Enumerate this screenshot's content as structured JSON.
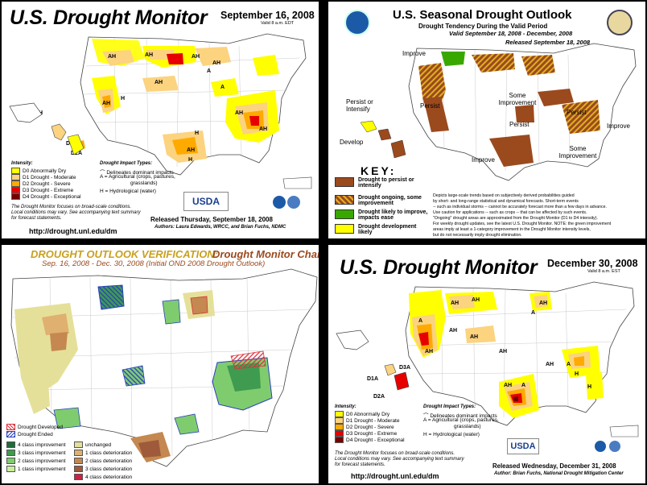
{
  "colors": {
    "d0": "#ffff00",
    "d1": "#fcd37f",
    "d2": "#ffaa00",
    "d3": "#e60000",
    "d4": "#730000",
    "persist": "#9b4a1e",
    "improve_green": "#38a800",
    "develop_yellow": "#ffff00"
  },
  "panel1": {
    "title": "U.S. Drought Monitor",
    "date": "September 16, 2008",
    "valid": "Valid 8 a.m. EDT",
    "intensity_heading": "Intensity:",
    "intensity": [
      "D0 Abnormally Dry",
      "D1 Drought - Moderate",
      "D2 Drought - Severe",
      "D3 Drought - Extreme",
      "D4 Drought - Exceptional"
    ],
    "impact_heading": "Drought Impact Types:",
    "impact_lines": [
      "Delineates dominant impacts",
      "A = Agricultural (crops, pastures,",
      "grasslands)",
      "H = Hydrological (water)"
    ],
    "note": [
      "The Drought Monitor focuses on broad-scale conditions.",
      "Local conditions may vary. See accompanying text summary",
      "for forecast statements."
    ],
    "released": "Released Thursday, September 18, 2008",
    "authors": "Authors: Laura Edwards, WRCC, and Brian Fuchs, NDMC",
    "url": "http://drought.unl.edu/dm",
    "usda": "USDA",
    "map_labels": [
      "AH",
      "AH",
      "AH",
      "AH",
      "A",
      "AH",
      "A",
      "AH",
      "H",
      "AH",
      "AH",
      "AH",
      "H",
      "H",
      "D1AH",
      "D3A",
      "D2A",
      "H"
    ]
  },
  "panel2": {
    "title": "U.S. Seasonal Drought Outlook",
    "subtitle": "Drought Tendency During the Valid Period",
    "valid": "Valid September 18, 2008 - December, 2008",
    "released": "Released September 18, 2008",
    "key": "KEY:",
    "key_items": [
      "Drought to persist or intensify",
      "Drought ongoing, some improvement",
      "Drought likely to improve, impacts ease",
      "Drought development likely"
    ],
    "labels": {
      "improve1": "Improve",
      "persist_intensify": "Persist or Intensify",
      "develop": "Develop",
      "persist1": "Persist",
      "persist2": "Persist",
      "persist3": "Persist",
      "some_improvement1": "Some Improvement",
      "some_improvement2": "Some Improvement",
      "improve2": "Improve",
      "improve3": "Improve"
    },
    "notes": [
      "Depicts large-scale trends based on subjectively derived probabilities guided",
      "by short- and long-range statistical and dynamical forecasts. Short-term events",
      "-- such as individual storms -- cannot be accurately forecast more than a few days in advance.",
      "Use caution for applications -- such as crops -- that can be affected by such events.",
      "\"Ongoing\" drought areas are approximated from the Drought Monitor (D1 to D4 intensity).",
      "For weekly drought updates, see the latest U.S. Drought Monitor. NOTE: the green improvement",
      "areas imply at least a 1-category improvement in the Drought Monitor intensity levels,",
      "but do not necessarily imply drought elimination."
    ]
  },
  "panel3": {
    "title_a": "DROUGHT OUTLOOK VERIFICATION:",
    "title_b": "Drought Monitor Change",
    "subtitle": "Sep. 16, 2008 - Dec. 30, 2008 (Initial OND 2008 Drought Outlook)",
    "developed": "Drought Developed",
    "ended": "Drought Ended",
    "left_legend": [
      "4 class improvement",
      "3 class improvement",
      "2 class improvement",
      "1 class improvement"
    ],
    "right_legend": [
      "unchanged",
      "1 class deterioration",
      "2 class deterioration",
      "3 class deterioration",
      "4 class deterioration"
    ],
    "left_colors": [
      "#1f6b3a",
      "#3e9b4f",
      "#7fcc6f",
      "#c8ef9a"
    ],
    "right_colors": [
      "#e5e099",
      "#e0b070",
      "#c48850",
      "#9e5a3a",
      "#cc2244"
    ]
  },
  "panel4": {
    "title": "U.S. Drought Monitor",
    "date": "December 30, 2008",
    "valid": "Valid 8 a.m. EST",
    "intensity_heading": "Intensity:",
    "intensity": [
      "D0 Abnormally Dry",
      "D1 Drought - Moderate",
      "D2 Drought - Severe",
      "D3 Drought - Extreme",
      "D4 Drought - Exceptional"
    ],
    "impact_heading": "Drought Impact Types:",
    "impact_lines": [
      "Delineates dominant impacts",
      "A = Agricultural (crops, pastures,",
      "grasslands)",
      "H = Hydrological (water)"
    ],
    "note": [
      "The Drought Monitor focuses on broad-scale conditions.",
      "Local conditions may vary. See accompanying text summary",
      "for forecast statements."
    ],
    "released": "Released Wednesday, December 31, 2008",
    "authors": "Author: Brian Fuchs, National Drought Mitigation Center",
    "url": "http://drought.unl.edu/dm",
    "usda": "USDA",
    "map_labels": [
      "AH",
      "AH",
      "A",
      "AH",
      "A",
      "AH",
      "AH",
      "AH",
      "H",
      "A",
      "H",
      "AH",
      "A",
      "AH",
      "D3A",
      "D1A",
      "D2A",
      "AH"
    ]
  }
}
